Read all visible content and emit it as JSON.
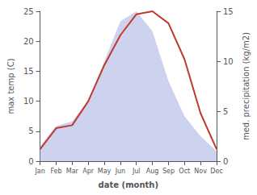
{
  "chart_data": {
    "type": "line",
    "categories": [
      "Jan",
      "Feb",
      "Mar",
      "Apr",
      "May",
      "Jun",
      "Jul",
      "Aug",
      "Sep",
      "Oct",
      "Nov",
      "Dec"
    ],
    "xlabel": "date (month)",
    "ylabel": "max temp (C)",
    "y2label": "med. precipitation (kg/m2)",
    "series": [
      {
        "type": "area",
        "color": "#b8c0e8",
        "axis": "y2",
        "values": [
          1.5,
          3.5,
          4,
          6,
          10,
          14,
          15,
          13,
          8,
          4.5,
          2.5,
          1
        ]
      },
      {
        "type": "line",
        "color": "#c0392b",
        "values": [
          2,
          5.5,
          6,
          10,
          16,
          21,
          24.5,
          25,
          23,
          17,
          8,
          2
        ]
      }
    ],
    "ylim": [
      0,
      25
    ],
    "yticks": [
      0,
      5,
      10,
      15,
      20,
      25
    ],
    "y2lim": [
      0,
      15
    ],
    "y2ticks": [
      0,
      5,
      10,
      15
    ],
    "grid": false
  }
}
